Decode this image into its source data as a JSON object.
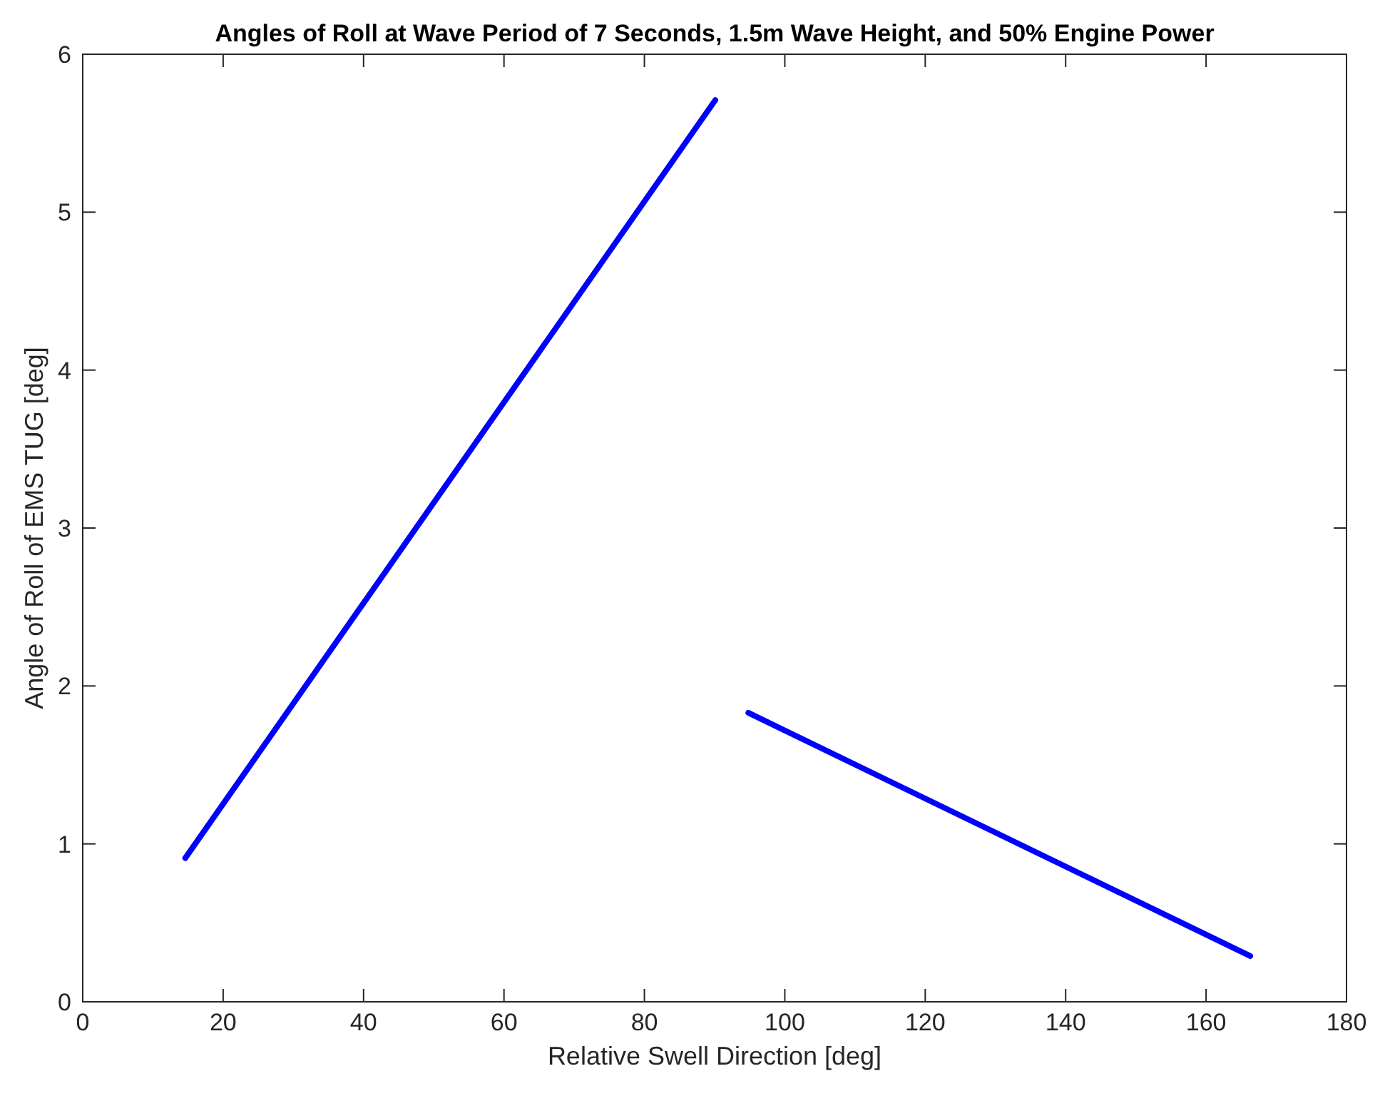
{
  "chart_data": {
    "type": "line",
    "title": "Angles of Roll at Wave Period of 7 Seconds, 1.5m Wave Height, and 50% Engine Power",
    "xlabel": "Relative Swell Direction [deg]",
    "ylabel": "Angle of Roll of EMS TUG [deg]",
    "series": [
      {
        "color": "#0000ff",
        "x": [
          14.6,
          90.1
        ],
        "values": [
          0.91,
          5.71
        ]
      },
      {
        "color": "#0000ff",
        "x": [
          94.8,
          166.3
        ],
        "values": [
          1.83,
          0.29
        ]
      }
    ],
    "xlim": [
      0,
      180
    ],
    "xticks": [
      0,
      20,
      40,
      60,
      80,
      100,
      120,
      140,
      160,
      180
    ],
    "ylim": [
      0,
      6
    ],
    "yticks": [
      0,
      1,
      2,
      3,
      4,
      5,
      6
    ],
    "grid": false
  }
}
